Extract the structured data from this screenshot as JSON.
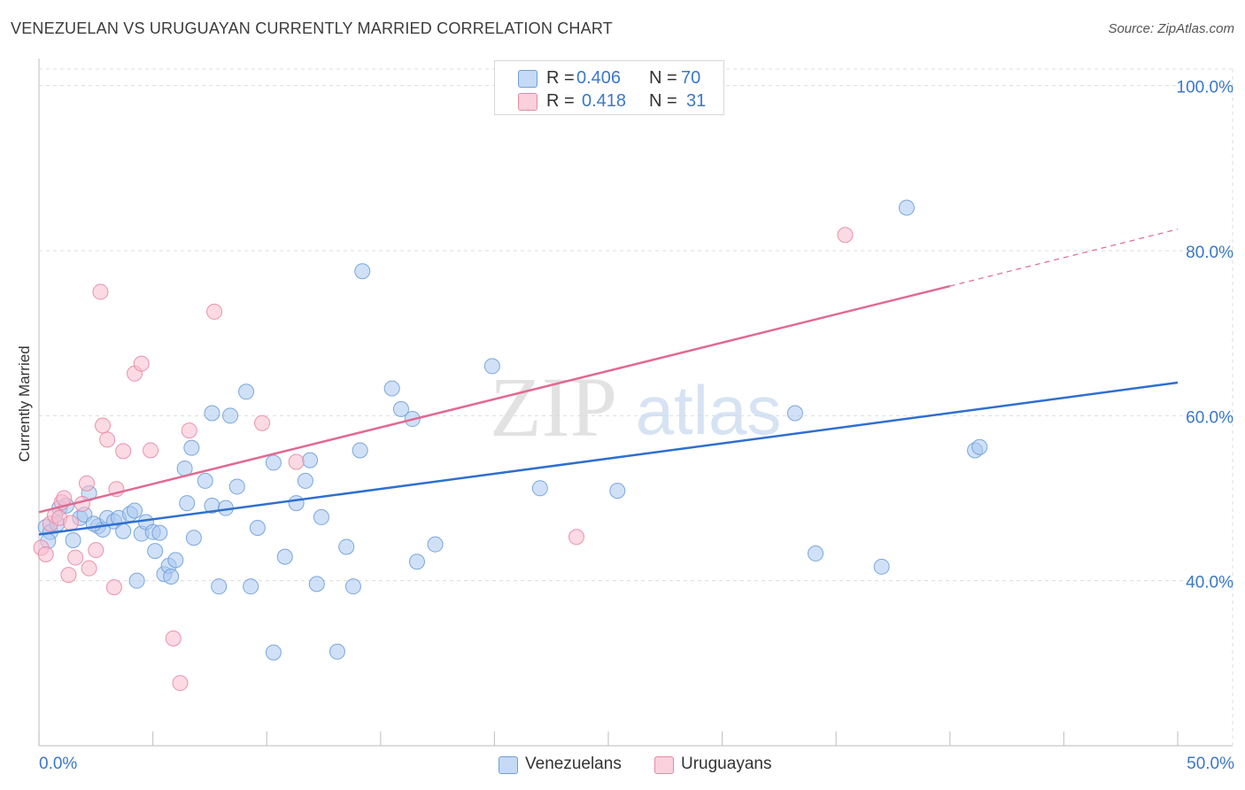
{
  "title": "VENEZUELAN VS URUGUAYAN CURRENTLY MARRIED CORRELATION CHART",
  "source": "Source: ZipAtlas.com",
  "watermark": {
    "zip": "ZIP",
    "atlas": "atlas"
  },
  "stats": [
    {
      "r_label": "R =",
      "r_value": "0.406",
      "n_label": "N =",
      "n_value": "70",
      "color": "#a9c8f0",
      "border": "#6f9fd8"
    },
    {
      "r_label": "R =",
      "r_value": "0.418",
      "n_label": "N =",
      "n_value": "31",
      "color": "#f7bccd",
      "border": "#e58aa6"
    }
  ],
  "chart_data": {
    "type": "scatter",
    "title": "VENEZUELAN VS URUGUAYAN CURRENTLY MARRIED CORRELATION CHART",
    "xlabel": "",
    "ylabel": "Currently Married",
    "xlim": [
      0,
      50
    ],
    "ylim": [
      20,
      102
    ],
    "x_tick_labels": [
      "0.0%",
      "50.0%"
    ],
    "y_ticks": [
      40,
      60,
      80,
      100
    ],
    "y_tick_labels": [
      "40.0%",
      "60.0%",
      "80.0%",
      "100.0%"
    ],
    "legend_position": "bottom",
    "series": [
      {
        "name": "Venezuelans",
        "color": "#a9c8f0",
        "edge": "#6f9fd8",
        "trend_color": "#2f6fd0",
        "trend": {
          "x0": 0,
          "y0": 45.6,
          "x1": 50,
          "y1": 64.0
        },
        "points": [
          [
            0.3,
            46.5
          ],
          [
            0.5,
            45.9
          ],
          [
            0.8,
            46.9
          ],
          [
            0.9,
            48.8
          ],
          [
            1.2,
            49.1
          ],
          [
            1.5,
            44.9
          ],
          [
            1.8,
            47.6
          ],
          [
            2.0,
            48.0
          ],
          [
            2.2,
            50.6
          ],
          [
            2.6,
            46.6
          ],
          [
            2.8,
            46.2
          ],
          [
            3.0,
            47.6
          ],
          [
            3.3,
            47.2
          ],
          [
            3.5,
            47.6
          ],
          [
            3.7,
            46.0
          ],
          [
            4.0,
            48.1
          ],
          [
            4.2,
            48.5
          ],
          [
            4.3,
            40.0
          ],
          [
            4.5,
            45.7
          ],
          [
            4.7,
            47.1
          ],
          [
            5.0,
            45.9
          ],
          [
            5.1,
            43.6
          ],
          [
            5.3,
            45.8
          ],
          [
            5.5,
            40.8
          ],
          [
            5.7,
            41.8
          ],
          [
            5.8,
            40.5
          ],
          [
            6.0,
            42.5
          ],
          [
            6.4,
            53.6
          ],
          [
            6.5,
            49.4
          ],
          [
            6.7,
            56.1
          ],
          [
            6.8,
            45.2
          ],
          [
            7.3,
            52.1
          ],
          [
            7.6,
            60.3
          ],
          [
            7.6,
            49.1
          ],
          [
            7.9,
            39.3
          ],
          [
            8.2,
            48.8
          ],
          [
            8.4,
            60.0
          ],
          [
            8.7,
            51.4
          ],
          [
            9.1,
            62.9
          ],
          [
            9.3,
            39.3
          ],
          [
            9.6,
            46.4
          ],
          [
            10.3,
            54.3
          ],
          [
            10.3,
            31.3
          ],
          [
            10.8,
            42.9
          ],
          [
            11.3,
            49.4
          ],
          [
            11.7,
            52.1
          ],
          [
            11.9,
            54.6
          ],
          [
            12.2,
            39.6
          ],
          [
            12.4,
            47.7
          ],
          [
            13.1,
            31.4
          ],
          [
            13.5,
            44.1
          ],
          [
            13.8,
            39.3
          ],
          [
            14.1,
            55.8
          ],
          [
            14.2,
            77.5
          ],
          [
            15.5,
            63.3
          ],
          [
            15.9,
            60.8
          ],
          [
            16.4,
            59.6
          ],
          [
            16.6,
            42.3
          ],
          [
            17.4,
            44.4
          ],
          [
            19.9,
            66.0
          ],
          [
            22.0,
            51.2
          ],
          [
            25.4,
            50.9
          ],
          [
            33.2,
            60.3
          ],
          [
            34.1,
            43.3
          ],
          [
            37.0,
            41.7
          ],
          [
            38.1,
            85.2
          ],
          [
            41.1,
            55.8
          ],
          [
            41.3,
            56.2
          ],
          [
            0.4,
            44.8
          ],
          [
            2.4,
            46.9
          ]
        ]
      },
      {
        "name": "Uruguayans",
        "color": "#f7bccd",
        "edge": "#e58aa6",
        "trend_color": "#e06a92",
        "trend": {
          "x0": 0,
          "y0": 48.3,
          "x1": 40,
          "y1": 75.7
        },
        "trend_dashed_to": {
          "x": 50,
          "y": 82.6
        },
        "points": [
          [
            0.1,
            44.0
          ],
          [
            0.5,
            46.9
          ],
          [
            0.7,
            47.9
          ],
          [
            0.9,
            47.6
          ],
          [
            1.0,
            49.5
          ],
          [
            1.1,
            50.0
          ],
          [
            1.3,
            40.7
          ],
          [
            1.4,
            47.0
          ],
          [
            1.6,
            42.8
          ],
          [
            1.9,
            49.3
          ],
          [
            2.1,
            51.8
          ],
          [
            2.2,
            41.5
          ],
          [
            2.5,
            43.7
          ],
          [
            2.7,
            75.0
          ],
          [
            2.8,
            58.8
          ],
          [
            3.0,
            57.1
          ],
          [
            3.3,
            39.2
          ],
          [
            3.4,
            51.1
          ],
          [
            3.7,
            55.7
          ],
          [
            4.2,
            65.1
          ],
          [
            4.5,
            66.3
          ],
          [
            4.9,
            55.8
          ],
          [
            5.9,
            33.0
          ],
          [
            6.2,
            27.6
          ],
          [
            6.6,
            58.2
          ],
          [
            7.7,
            72.6
          ],
          [
            9.8,
            59.1
          ],
          [
            11.3,
            54.4
          ],
          [
            23.6,
            45.3
          ],
          [
            35.4,
            81.9
          ],
          [
            0.3,
            43.2
          ]
        ]
      }
    ]
  },
  "legend": [
    {
      "label": "Venezuelans",
      "color": "#a9c8f0",
      "border": "#6f9fd8"
    },
    {
      "label": "Uruguayans",
      "color": "#f7bccd",
      "border": "#e58aa6"
    }
  ],
  "colors": {
    "axis_label": "#3a78c8",
    "grid": "#dddddd"
  }
}
